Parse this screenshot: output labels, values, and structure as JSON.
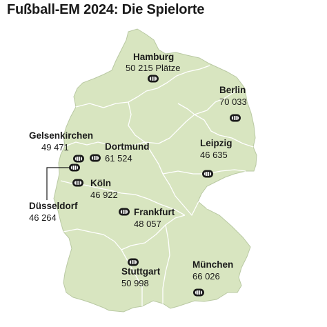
{
  "title": "Fußball-EM 2024: Die Spielorte",
  "colors": {
    "land": "#d8e5c0",
    "border": "#ffffff",
    "outline": "#b9c9a3",
    "stadium": "#1a1a1a",
    "text": "#1a1a1a"
  },
  "icon": "stadium-icon",
  "venues": [
    {
      "id": "hamburg",
      "name": "Hamburg",
      "capacity": "50 215 Plätze"
    },
    {
      "id": "berlin",
      "name": "Berlin",
      "capacity": "70 033"
    },
    {
      "id": "gelsenkirchen",
      "name": "Gelsenkirchen",
      "capacity": "49 471"
    },
    {
      "id": "dortmund",
      "name": "Dortmund",
      "capacity": "61 524"
    },
    {
      "id": "leipzig",
      "name": "Leipzig",
      "capacity": "46 635"
    },
    {
      "id": "koeln",
      "name": "Köln",
      "capacity": "46 922"
    },
    {
      "id": "duesseldorf",
      "name": "Düsseldorf",
      "capacity": "46 264"
    },
    {
      "id": "frankfurt",
      "name": "Frankfurt",
      "capacity": "48 057"
    },
    {
      "id": "stuttgart",
      "name": "Stuttgart",
      "capacity": "50 998"
    },
    {
      "id": "muenchen",
      "name": "München",
      "capacity": "66 026"
    }
  ]
}
